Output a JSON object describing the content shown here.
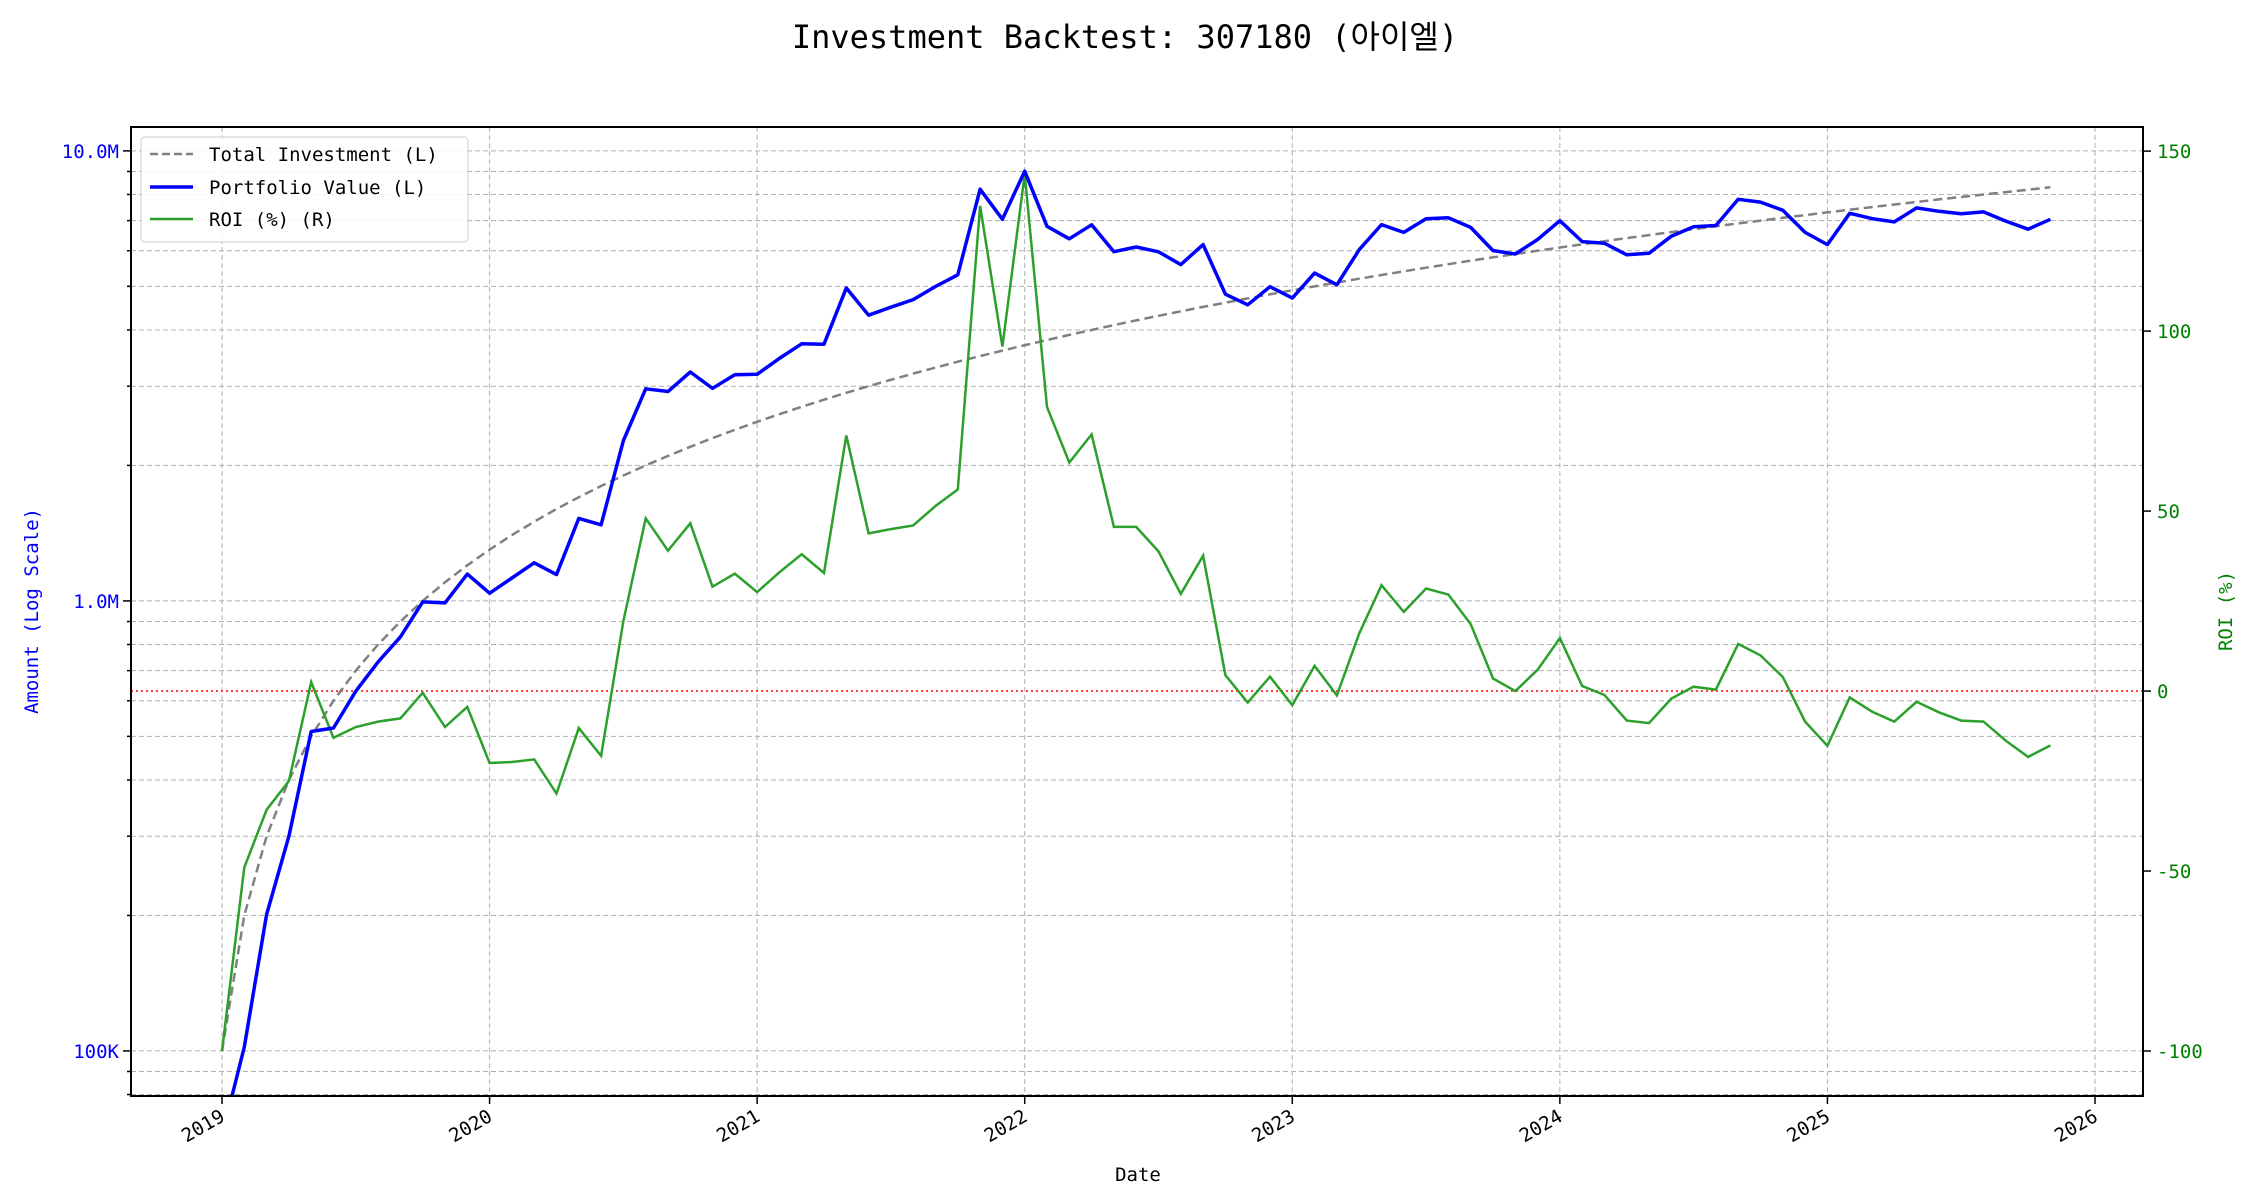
{
  "chart_data": {
    "type": "line",
    "title": "Investment Backtest: 307180 (아이엘)",
    "xlabel": "Date",
    "ylabel_left": "Amount (Log Scale)",
    "ylabel_right": "ROI (%)",
    "x_start": "2019-01",
    "x_end": "2025-11",
    "x_ticks": [
      "2019",
      "2020",
      "2021",
      "2022",
      "2023",
      "2024",
      "2025",
      "2026"
    ],
    "y_left_scale": "log",
    "y_left_ticks": [
      {
        "value": 100000,
        "label": "100K"
      },
      {
        "value": 1000000,
        "label": "1.0M"
      },
      {
        "value": 10000000,
        "label": "10.0M"
      }
    ],
    "y_left_range": [
      79400,
      11300000
    ],
    "y_right_ticks": [
      -100,
      -50,
      0,
      50,
      100,
      150
    ],
    "y_right_range": [
      -112.5,
      156.7
    ],
    "grid": true,
    "legend_position": "top-left",
    "reference_line": {
      "axis": "right",
      "value": 0,
      "color": "#ff0000",
      "style": "dotted"
    },
    "series": [
      {
        "name": "Total Investment (L)",
        "axis": "left",
        "color": "#808080",
        "style": "dashed",
        "monthly_contribution": 100000,
        "note_values": "cumulative: 100000 × month index (1..83)"
      },
      {
        "name": "Portfolio Value (L)",
        "axis": "left",
        "color": "#0000ff",
        "style": "solid",
        "derived": "Total Investment × (1 + ROI/100)"
      },
      {
        "name": "ROI (%) (R)",
        "axis": "right",
        "color": "#2ca02c",
        "style": "solid",
        "values": [
          -100,
          -49,
          -33,
          -25,
          2.5,
          -13,
          -10,
          -8.5,
          -7.6,
          -0.5,
          -10,
          -4.4,
          -20,
          -19.7,
          -19,
          -28.5,
          -10.3,
          -18,
          19.5,
          48,
          39,
          46.6,
          29,
          32.6,
          27.5,
          33,
          38,
          32.8,
          71,
          43.8,
          45,
          46,
          51.4,
          56,
          134.8,
          95.7,
          143.6,
          78.9,
          63.5,
          71.3,
          45.6,
          45.6,
          38.8,
          27,
          37.6,
          4.4,
          -3.2,
          4,
          -3.9,
          7,
          -1.2,
          16,
          29.4,
          22,
          28.5,
          26.8,
          18.6,
          3.5,
          0,
          5.9,
          14.7,
          1.4,
          -1.1,
          -8.2,
          -8.9,
          -2.1,
          1.2,
          0.4,
          13.1,
          9.9,
          3.9,
          -8.5,
          -15.2,
          -1.8,
          -5.7,
          -8.5,
          -3,
          -5.9,
          -8.2,
          -8.5,
          -13.8,
          -18.3,
          -15.1
        ]
      }
    ]
  },
  "colors": {
    "left_axis": "#0000ff",
    "right_axis": "#008000",
    "grid": "#b0b0b0"
  }
}
